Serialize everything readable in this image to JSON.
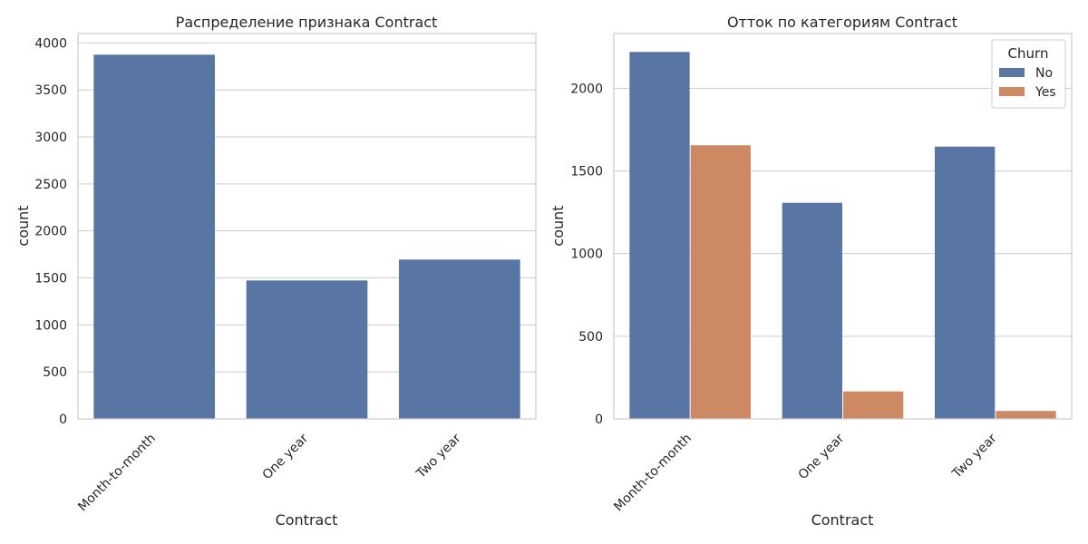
{
  "chart_data": [
    {
      "type": "bar",
      "title": "Распределение признака Contract",
      "xlabel": "Contract",
      "ylabel": "count",
      "categories": [
        "Month-to-month",
        "One year",
        "Two year"
      ],
      "values": [
        3875,
        1473,
        1695
      ],
      "ylim": [
        0,
        4100
      ],
      "yticks": [
        0,
        500,
        1000,
        1500,
        2000,
        2500,
        3000,
        3500,
        4000
      ],
      "grid": true,
      "colors": [
        "#5875a4"
      ]
    },
    {
      "type": "bar",
      "title": "Отток по категориям Contract",
      "xlabel": "Contract",
      "ylabel": "count",
      "categories": [
        "Month-to-month",
        "One year",
        "Two year"
      ],
      "series": [
        {
          "name": "No",
          "values": [
            2220,
            1307,
            1647
          ]
        },
        {
          "name": "Yes",
          "values": [
            1655,
            166,
            48
          ]
        }
      ],
      "ylim": [
        0,
        2331
      ],
      "yticks": [
        0,
        500,
        1000,
        1500,
        2000
      ],
      "legend": {
        "title": "Churn",
        "position": "top-right"
      },
      "grid": true,
      "colors": [
        "#5875a4",
        "#cc8963"
      ]
    }
  ]
}
